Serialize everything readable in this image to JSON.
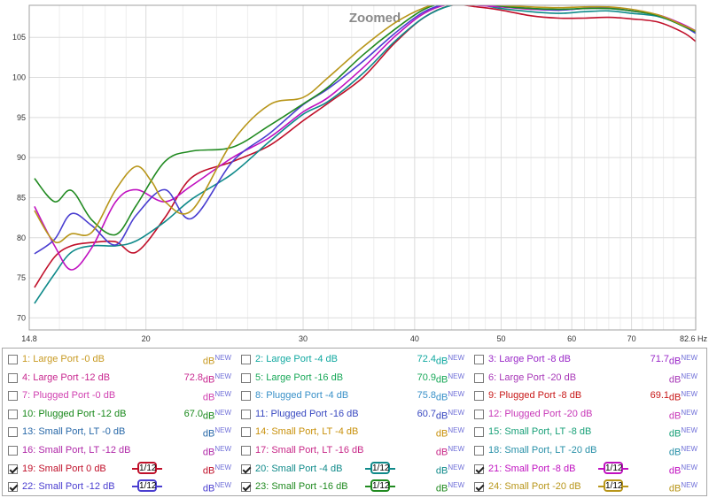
{
  "chart_data": {
    "type": "line",
    "title": "Zoomed",
    "xlabel": "",
    "ylabel": "",
    "x_scale": "log",
    "xlim": [
      14.8,
      82.6
    ],
    "ylim": [
      68.5,
      109
    ],
    "x_ticks": [
      14.8,
      20,
      30,
      40,
      50,
      60,
      70,
      82.6
    ],
    "x_tick_labels": [
      "14.8",
      "20",
      "30",
      "40",
      "50",
      "60",
      "70",
      "82.6 Hz"
    ],
    "y_ticks": [
      70,
      75,
      80,
      85,
      90,
      95,
      100,
      105
    ],
    "y_tick_labels": [
      "70",
      "75",
      "80",
      "85",
      "90",
      "95",
      "100",
      "105"
    ],
    "grid": true,
    "series": [
      {
        "name": "Small Port 0 dB",
        "color": "#c0102a",
        "x": [
          15,
          15.8,
          16.5,
          17.4,
          18.5,
          19.5,
          21,
          22.5,
          25,
          27.5,
          30,
          32,
          35,
          38,
          41,
          44,
          47,
          50,
          54,
          58,
          62,
          66,
          70,
          75,
          80,
          82.6
        ],
        "y": [
          73.8,
          77.6,
          79,
          79.4,
          79.5,
          78.2,
          82.5,
          87.5,
          89.5,
          91.5,
          94.6,
          96.8,
          100,
          104.3,
          107.5,
          109,
          108.8,
          108.4,
          107.7,
          107.4,
          107.4,
          107.5,
          107.3,
          106.9,
          105.6,
          104.5
        ]
      },
      {
        "name": "Small Port -4 dB",
        "color": "#0f8a8a",
        "x": [
          15,
          15.8,
          16.5,
          17.4,
          18.5,
          19.5,
          21,
          22.5,
          25,
          27.5,
          30,
          32,
          35,
          38,
          41,
          44,
          47,
          50,
          54,
          58,
          62,
          66,
          70,
          75,
          80,
          82.6
        ],
        "y": [
          71.8,
          75.5,
          78.2,
          79,
          79,
          79.6,
          82,
          84.8,
          88,
          92,
          95.4,
          97,
          100.5,
          104.5,
          107.5,
          109,
          109.1,
          108.6,
          108.2,
          108,
          108.2,
          108.3,
          108,
          107.6,
          106.5,
          105.8
        ]
      },
      {
        "name": "Small Port -8 dB",
        "color": "#c010c0",
        "x": [
          15,
          15.8,
          16.5,
          17.4,
          18.5,
          19.5,
          21,
          22.5,
          25,
          27.5,
          30,
          32,
          35,
          38,
          41,
          44,
          47,
          50,
          54,
          58,
          62,
          66,
          70,
          75,
          80,
          82.6
        ],
        "y": [
          83.9,
          79,
          76,
          78.8,
          84.5,
          86,
          84.5,
          86.5,
          90,
          92.5,
          95.7,
          97.5,
          101.2,
          105.1,
          108,
          109.2,
          109,
          108.8,
          108.5,
          108.4,
          108.6,
          108.7,
          108.3,
          107.8,
          106.6,
          105.8
        ]
      },
      {
        "name": "Small Port -12 dB",
        "color": "#4a3ed0",
        "x": [
          15,
          15.8,
          16.5,
          17.4,
          18.5,
          19.5,
          21,
          22.5,
          25,
          27.5,
          30,
          32,
          35,
          38,
          41,
          44,
          47,
          50,
          54,
          58,
          62,
          66,
          70,
          75,
          80,
          82.6
        ],
        "y": [
          78,
          79.8,
          83,
          81.5,
          79.1,
          82.8,
          86,
          82.4,
          89.5,
          93,
          96.6,
          98.6,
          102,
          105.5,
          108.2,
          109.3,
          109.3,
          109,
          108.6,
          108.4,
          108.6,
          108.6,
          108.3,
          107.7,
          106.4,
          105.5
        ]
      },
      {
        "name": "Small Port -16 dB",
        "color": "#208a20",
        "x": [
          15,
          15.8,
          16.5,
          17.4,
          18.5,
          19.5,
          21,
          22.5,
          25,
          27.5,
          30,
          32,
          35,
          38,
          41,
          44,
          47,
          50,
          54,
          58,
          62,
          66,
          70,
          75,
          80,
          82.6
        ],
        "y": [
          87.4,
          84.5,
          85.9,
          82.2,
          80.4,
          84,
          89.5,
          90.8,
          91.3,
          94,
          96.7,
          98.8,
          102.8,
          106,
          108.5,
          109.5,
          109.4,
          108.9,
          108.6,
          108.5,
          108.6,
          108.6,
          108.3,
          107.7,
          106.4,
          105.7
        ]
      },
      {
        "name": "Small Port -20 dB",
        "color": "#b8961a",
        "x": [
          15,
          15.8,
          16.5,
          17.4,
          18.5,
          19.5,
          20.3,
          21,
          22.5,
          25,
          27.5,
          30,
          32,
          35,
          38,
          41,
          44,
          47,
          50,
          54,
          58,
          62,
          66,
          70,
          75,
          80,
          82.6
        ],
        "y": [
          83.4,
          79.5,
          80.5,
          80.7,
          86,
          88.9,
          87,
          84.5,
          83.4,
          92,
          96.6,
          97.5,
          100,
          103.8,
          106.8,
          108.7,
          109.6,
          109.4,
          109,
          108.8,
          108.7,
          108.8,
          108.8,
          108.5,
          107.8,
          106.5,
          105.8
        ]
      }
    ]
  },
  "legend": {
    "unit": "dB",
    "new_tag": "NEW",
    "items": [
      {
        "label": "1: Large Port -0 dB",
        "value": "",
        "checked": false,
        "color": "#c89a22"
      },
      {
        "label": "2: Large Port -4 dB",
        "value": "72.4",
        "checked": false,
        "color": "#10a8a0"
      },
      {
        "label": "3: Large Port -8 dB",
        "value": "71.7",
        "checked": false,
        "color": "#9a28c8"
      },
      {
        "label": "4: Large Port -12 dB",
        "value": "72.8",
        "checked": false,
        "color": "#c82890"
      },
      {
        "label": "5: Large Port -16 dB",
        "value": "70.9",
        "checked": false,
        "color": "#18a858"
      },
      {
        "label": "6: Large Port -20 dB",
        "value": "",
        "checked": false,
        "color": "#a838b8"
      },
      {
        "label": "7: Plugged Port -0 dB",
        "value": "",
        "checked": false,
        "color": "#d040b0"
      },
      {
        "label": "8: Plugged Port -4 dB",
        "value": "75.8",
        "checked": false,
        "color": "#3890c8"
      },
      {
        "label": "9: Plugged Port -8 dB",
        "value": "69.1",
        "checked": false,
        "color": "#c81818"
      },
      {
        "label": "10: Plugged Port -12 dB",
        "value": "67.0",
        "checked": false,
        "color": "#18881a"
      },
      {
        "label": "11: Plugged Port -16 dB",
        "value": "60.7",
        "checked": false,
        "color": "#3848c0"
      },
      {
        "label": "12: Plugged Port -20 dB",
        "value": "",
        "checked": false,
        "color": "#c838b8"
      },
      {
        "label": "13: Small Port, LT -0 dB",
        "value": "",
        "checked": false,
        "color": "#2868a8"
      },
      {
        "label": "14: Small Port, LT -4 dB",
        "value": "",
        "checked": false,
        "color": "#c8900a"
      },
      {
        "label": "15: Small Port, LT -8 dB",
        "value": "",
        "checked": false,
        "color": "#18a078"
      },
      {
        "label": "16: Small Port, LT -12 dB",
        "value": "",
        "checked": false,
        "color": "#b028a8"
      },
      {
        "label": "17: Small Port, LT -16 dB",
        "value": "",
        "checked": false,
        "color": "#c82888"
      },
      {
        "label": "18: Small Port, LT -20 dB",
        "value": "",
        "checked": false,
        "color": "#2890a8"
      },
      {
        "label": "19: Small Port 0 dB",
        "value": "",
        "checked": true,
        "color": "#c0102a",
        "smoothing": "1/12"
      },
      {
        "label": "20: Small Port -4 dB",
        "value": "",
        "checked": true,
        "color": "#0f8a8a",
        "smoothing": "1/12"
      },
      {
        "label": "21: Small Port -8 dB",
        "value": "",
        "checked": true,
        "color": "#c010c0",
        "smoothing": "1/12"
      },
      {
        "label": "22: Small Port -12 dB",
        "value": "",
        "checked": true,
        "color": "#4a3ed0",
        "smoothing": "1/12"
      },
      {
        "label": "23: Small Port -16 dB",
        "value": "",
        "checked": true,
        "color": "#208a20",
        "smoothing": "1/12"
      },
      {
        "label": "24: Small Port -20 dB",
        "value": "",
        "checked": true,
        "color": "#b8961a",
        "smoothing": "1/12"
      }
    ]
  }
}
